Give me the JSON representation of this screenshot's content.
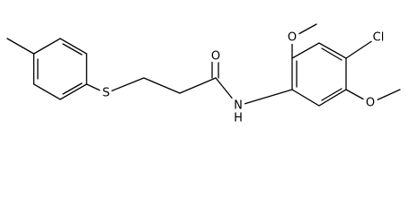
{
  "labels": [
    "S",
    "O",
    "N",
    "H",
    "O",
    "Cl",
    "O"
  ]
}
